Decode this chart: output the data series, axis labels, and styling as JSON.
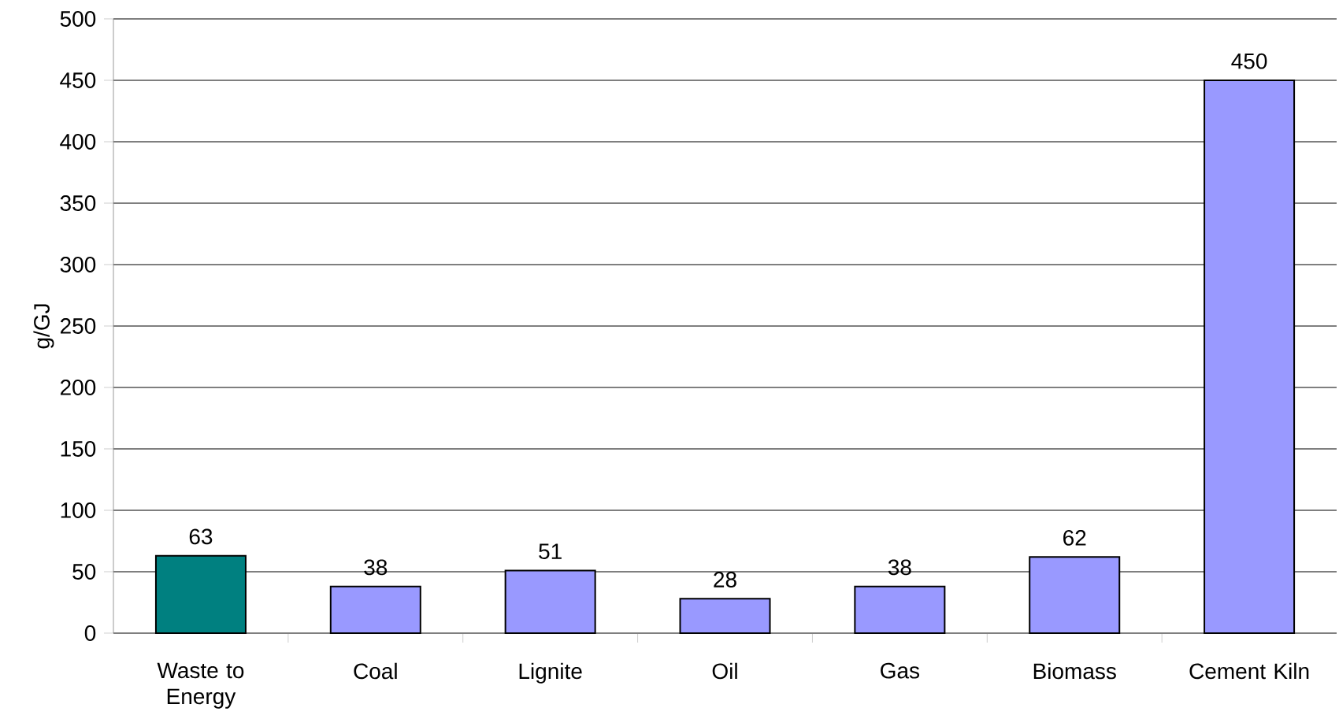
{
  "chart_data": {
    "type": "bar",
    "ylabel": "g/GJ",
    "categories": [
      "Waste to Energy",
      "Coal",
      "Lignite",
      "Oil",
      "Gas",
      "Biomass",
      "Cement Kiln"
    ],
    "values": [
      63,
      38,
      51,
      28,
      38,
      62,
      450
    ],
    "colors": [
      "#008080",
      "#9999ff",
      "#9999ff",
      "#9999ff",
      "#9999ff",
      "#9999ff",
      "#9999ff"
    ],
    "ylim": [
      0,
      500
    ],
    "yticks": [
      0,
      50,
      100,
      150,
      200,
      250,
      300,
      350,
      400,
      450,
      500
    ],
    "grid": "y",
    "data_labels": true
  }
}
